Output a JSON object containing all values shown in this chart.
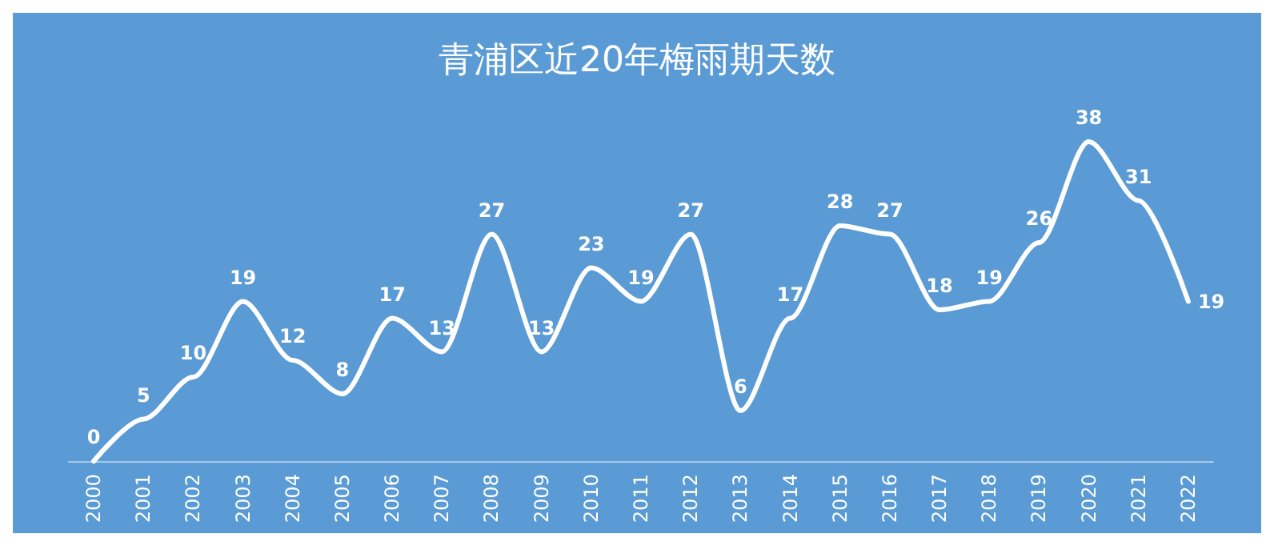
{
  "chart_data": {
    "type": "line",
    "title": "青浦区近20年梅雨期天数",
    "categories": [
      "2000",
      "2001",
      "2002",
      "2003",
      "2004",
      "2005",
      "2006",
      "2007",
      "2008",
      "2009",
      "2010",
      "2011",
      "2012",
      "2013",
      "2014",
      "2015",
      "2016",
      "2017",
      "2018",
      "2019",
      "2020",
      "2021",
      "2022"
    ],
    "series": [
      {
        "color": "#ffffff",
        "values": [
          0,
          5,
          10,
          19,
          12,
          8,
          17,
          13,
          27,
          13,
          23,
          19,
          27,
          6,
          17,
          28,
          27,
          18,
          19,
          26,
          38,
          31,
          19
        ]
      }
    ],
    "data_labels": true,
    "tick_labels": "x",
    "grid": false,
    "marker": "none",
    "line_style": "solid"
  }
}
